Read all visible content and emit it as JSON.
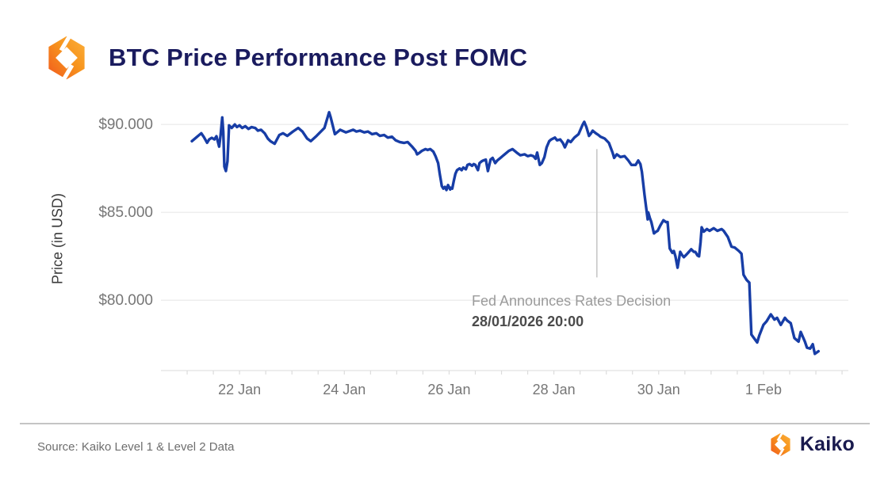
{
  "header": {
    "title": "BTC Price Performance Post FOMC"
  },
  "footer": {
    "source": "Source: Kaiko Level 1 & Level 2 Data",
    "brand": "Kaiko"
  },
  "colors": {
    "title_navy": "#1a1b5e",
    "line_blue": "#173da6",
    "gridline": "#ececec",
    "axis_line": "#e2e2e2",
    "tick_text": "#767676",
    "annotation_gray": "#9b9b9b",
    "annotation_dark": "#4b4b4b",
    "event_line": "#c8c8c8",
    "brand_orange_dark": "#f1591d",
    "brand_orange_light": "#fbb03b"
  },
  "chart_data": {
    "type": "line",
    "title": "BTC Price Performance Post FOMC",
    "xlabel": "",
    "ylabel": "Price (in USD)",
    "x_unit": "days since 21 Jan 2026 00:00",
    "xlim": [
      -0.5,
      12.62
    ],
    "ylim": [
      76000,
      91000
    ],
    "grid": "horizontal",
    "legend": "none",
    "y_ticks": [
      {
        "label": "$90.000",
        "value": 90000
      },
      {
        "label": "$85.000",
        "value": 85000
      },
      {
        "label": "$80.000",
        "value": 80000
      }
    ],
    "x_ticks": [
      {
        "label": "22 Jan",
        "day": 1
      },
      {
        "label": "24 Jan",
        "day": 3
      },
      {
        "label": "26 Jan",
        "day": 5
      },
      {
        "label": "28 Jan",
        "day": 7
      },
      {
        "label": "30 Jan",
        "day": 9
      },
      {
        "label": "1 Feb",
        "day": 11
      }
    ],
    "minor_tick_interval_days": 0.5,
    "annotation": {
      "line1": "Fed Announces Rates Decision",
      "line2": "28/01/2026 20:00",
      "event_day": 7.82,
      "line_price_top": 88600,
      "line_price_bottom": 81300
    },
    "series": [
      {
        "name": "BTC price (USD)",
        "color": "#173da6",
        "points": [
          [
            0.09,
            89050
          ],
          [
            0.17,
            89250
          ],
          [
            0.23,
            89400
          ],
          [
            0.27,
            89500
          ],
          [
            0.32,
            89280
          ],
          [
            0.38,
            88960
          ],
          [
            0.42,
            89150
          ],
          [
            0.47,
            89240
          ],
          [
            0.52,
            89150
          ],
          [
            0.56,
            89330
          ],
          [
            0.61,
            88740
          ],
          [
            0.64,
            89420
          ],
          [
            0.67,
            90400
          ],
          [
            0.69,
            89600
          ],
          [
            0.71,
            87600
          ],
          [
            0.74,
            87350
          ],
          [
            0.77,
            87900
          ],
          [
            0.8,
            89950
          ],
          [
            0.85,
            89800
          ],
          [
            0.91,
            90000
          ],
          [
            0.95,
            89850
          ],
          [
            1.0,
            89950
          ],
          [
            1.05,
            89800
          ],
          [
            1.11,
            89900
          ],
          [
            1.17,
            89750
          ],
          [
            1.23,
            89850
          ],
          [
            1.3,
            89800
          ],
          [
            1.35,
            89650
          ],
          [
            1.41,
            89700
          ],
          [
            1.48,
            89500
          ],
          [
            1.54,
            89200
          ],
          [
            1.59,
            89050
          ],
          [
            1.67,
            88900
          ],
          [
            1.76,
            89400
          ],
          [
            1.83,
            89500
          ],
          [
            1.91,
            89350
          ],
          [
            2.02,
            89600
          ],
          [
            2.12,
            89800
          ],
          [
            2.2,
            89600
          ],
          [
            2.29,
            89200
          ],
          [
            2.36,
            89050
          ],
          [
            2.47,
            89350
          ],
          [
            2.62,
            89800
          ],
          [
            2.71,
            90700
          ],
          [
            2.74,
            90400
          ],
          [
            2.82,
            89450
          ],
          [
            2.92,
            89700
          ],
          [
            3.03,
            89550
          ],
          [
            3.17,
            89700
          ],
          [
            3.23,
            89600
          ],
          [
            3.3,
            89650
          ],
          [
            3.38,
            89550
          ],
          [
            3.45,
            89600
          ],
          [
            3.53,
            89450
          ],
          [
            3.61,
            89500
          ],
          [
            3.68,
            89350
          ],
          [
            3.76,
            89400
          ],
          [
            3.83,
            89250
          ],
          [
            3.91,
            89300
          ],
          [
            3.98,
            89100
          ],
          [
            4.06,
            89000
          ],
          [
            4.14,
            88950
          ],
          [
            4.21,
            89000
          ],
          [
            4.29,
            88750
          ],
          [
            4.36,
            88500
          ],
          [
            4.39,
            88300
          ],
          [
            4.44,
            88400
          ],
          [
            4.48,
            88500
          ],
          [
            4.55,
            88600
          ],
          [
            4.59,
            88550
          ],
          [
            4.64,
            88600
          ],
          [
            4.7,
            88450
          ],
          [
            4.74,
            88200
          ],
          [
            4.79,
            87800
          ],
          [
            4.82,
            87200
          ],
          [
            4.85,
            86700
          ],
          [
            4.86,
            86500
          ],
          [
            4.89,
            86350
          ],
          [
            4.92,
            86450
          ],
          [
            4.95,
            86270
          ],
          [
            4.98,
            86550
          ],
          [
            5.02,
            86300
          ],
          [
            5.03,
            86400
          ],
          [
            5.06,
            86350
          ],
          [
            5.09,
            86800
          ],
          [
            5.12,
            87200
          ],
          [
            5.15,
            87400
          ],
          [
            5.2,
            87500
          ],
          [
            5.24,
            87400
          ],
          [
            5.27,
            87550
          ],
          [
            5.32,
            87450
          ],
          [
            5.35,
            87700
          ],
          [
            5.39,
            87750
          ],
          [
            5.44,
            87650
          ],
          [
            5.47,
            87750
          ],
          [
            5.5,
            87700
          ],
          [
            5.55,
            87400
          ],
          [
            5.58,
            87800
          ],
          [
            5.62,
            87900
          ],
          [
            5.65,
            87950
          ],
          [
            5.7,
            88000
          ],
          [
            5.74,
            87350
          ],
          [
            5.79,
            88000
          ],
          [
            5.83,
            88100
          ],
          [
            5.88,
            87800
          ],
          [
            5.92,
            87950
          ],
          [
            5.98,
            88100
          ],
          [
            6.06,
            88300
          ],
          [
            6.14,
            88500
          ],
          [
            6.21,
            88600
          ],
          [
            6.29,
            88400
          ],
          [
            6.36,
            88250
          ],
          [
            6.44,
            88300
          ],
          [
            6.5,
            88200
          ],
          [
            6.56,
            88250
          ],
          [
            6.61,
            88200
          ],
          [
            6.65,
            88050
          ],
          [
            6.68,
            88400
          ],
          [
            6.73,
            87700
          ],
          [
            6.77,
            87800
          ],
          [
            6.82,
            88150
          ],
          [
            6.86,
            88700
          ],
          [
            6.91,
            89050
          ],
          [
            6.95,
            89150
          ],
          [
            7.02,
            89250
          ],
          [
            7.06,
            89100
          ],
          [
            7.12,
            89150
          ],
          [
            7.17,
            88950
          ],
          [
            7.21,
            88700
          ],
          [
            7.27,
            89100
          ],
          [
            7.32,
            89000
          ],
          [
            7.39,
            89250
          ],
          [
            7.47,
            89450
          ],
          [
            7.55,
            90000
          ],
          [
            7.58,
            90150
          ],
          [
            7.62,
            89850
          ],
          [
            7.67,
            89350
          ],
          [
            7.71,
            89500
          ],
          [
            7.74,
            89650
          ],
          [
            7.8,
            89500
          ],
          [
            7.85,
            89400
          ],
          [
            7.89,
            89300
          ],
          [
            7.97,
            89200
          ],
          [
            8.05,
            88950
          ],
          [
            8.12,
            88400
          ],
          [
            8.15,
            88100
          ],
          [
            8.2,
            88300
          ],
          [
            8.27,
            88150
          ],
          [
            8.35,
            88200
          ],
          [
            8.42,
            87950
          ],
          [
            8.48,
            87700
          ],
          [
            8.56,
            87700
          ],
          [
            8.61,
            87950
          ],
          [
            8.65,
            87750
          ],
          [
            8.68,
            87300
          ],
          [
            8.73,
            86000
          ],
          [
            8.76,
            85300
          ],
          [
            8.79,
            84600
          ],
          [
            8.8,
            85000
          ],
          [
            8.83,
            84700
          ],
          [
            8.86,
            84450
          ],
          [
            8.91,
            83800
          ],
          [
            8.95,
            83900
          ],
          [
            8.98,
            83950
          ],
          [
            9.03,
            84250
          ],
          [
            9.09,
            84550
          ],
          [
            9.14,
            84450
          ],
          [
            9.17,
            84450
          ],
          [
            9.21,
            82950
          ],
          [
            9.26,
            82700
          ],
          [
            9.29,
            82800
          ],
          [
            9.32,
            82500
          ],
          [
            9.36,
            81850
          ],
          [
            9.41,
            82750
          ],
          [
            9.44,
            82600
          ],
          [
            9.48,
            82450
          ],
          [
            9.53,
            82600
          ],
          [
            9.56,
            82700
          ],
          [
            9.62,
            82900
          ],
          [
            9.67,
            82750
          ],
          [
            9.7,
            82750
          ],
          [
            9.74,
            82550
          ],
          [
            9.77,
            82500
          ],
          [
            9.8,
            83300
          ],
          [
            9.82,
            84150
          ],
          [
            9.86,
            83900
          ],
          [
            9.92,
            84050
          ],
          [
            9.97,
            83950
          ],
          [
            10.05,
            84100
          ],
          [
            10.12,
            83950
          ],
          [
            10.2,
            84050
          ],
          [
            10.24,
            83950
          ],
          [
            10.32,
            83600
          ],
          [
            10.39,
            83050
          ],
          [
            10.45,
            83000
          ],
          [
            10.53,
            82800
          ],
          [
            10.58,
            82650
          ],
          [
            10.62,
            81450
          ],
          [
            10.68,
            81150
          ],
          [
            10.73,
            81000
          ],
          [
            10.77,
            78050
          ],
          [
            10.83,
            77800
          ],
          [
            10.88,
            77600
          ],
          [
            10.92,
            78000
          ],
          [
            11.0,
            78600
          ],
          [
            11.06,
            78800
          ],
          [
            11.14,
            79200
          ],
          [
            11.21,
            78900
          ],
          [
            11.26,
            79000
          ],
          [
            11.33,
            78600
          ],
          [
            11.41,
            79000
          ],
          [
            11.45,
            78850
          ],
          [
            11.52,
            78700
          ],
          [
            11.59,
            77850
          ],
          [
            11.67,
            77650
          ],
          [
            11.71,
            78200
          ],
          [
            11.79,
            77650
          ],
          [
            11.83,
            77300
          ],
          [
            11.89,
            77250
          ],
          [
            11.94,
            77500
          ],
          [
            11.98,
            76950
          ],
          [
            12.05,
            77100
          ]
        ]
      }
    ]
  }
}
